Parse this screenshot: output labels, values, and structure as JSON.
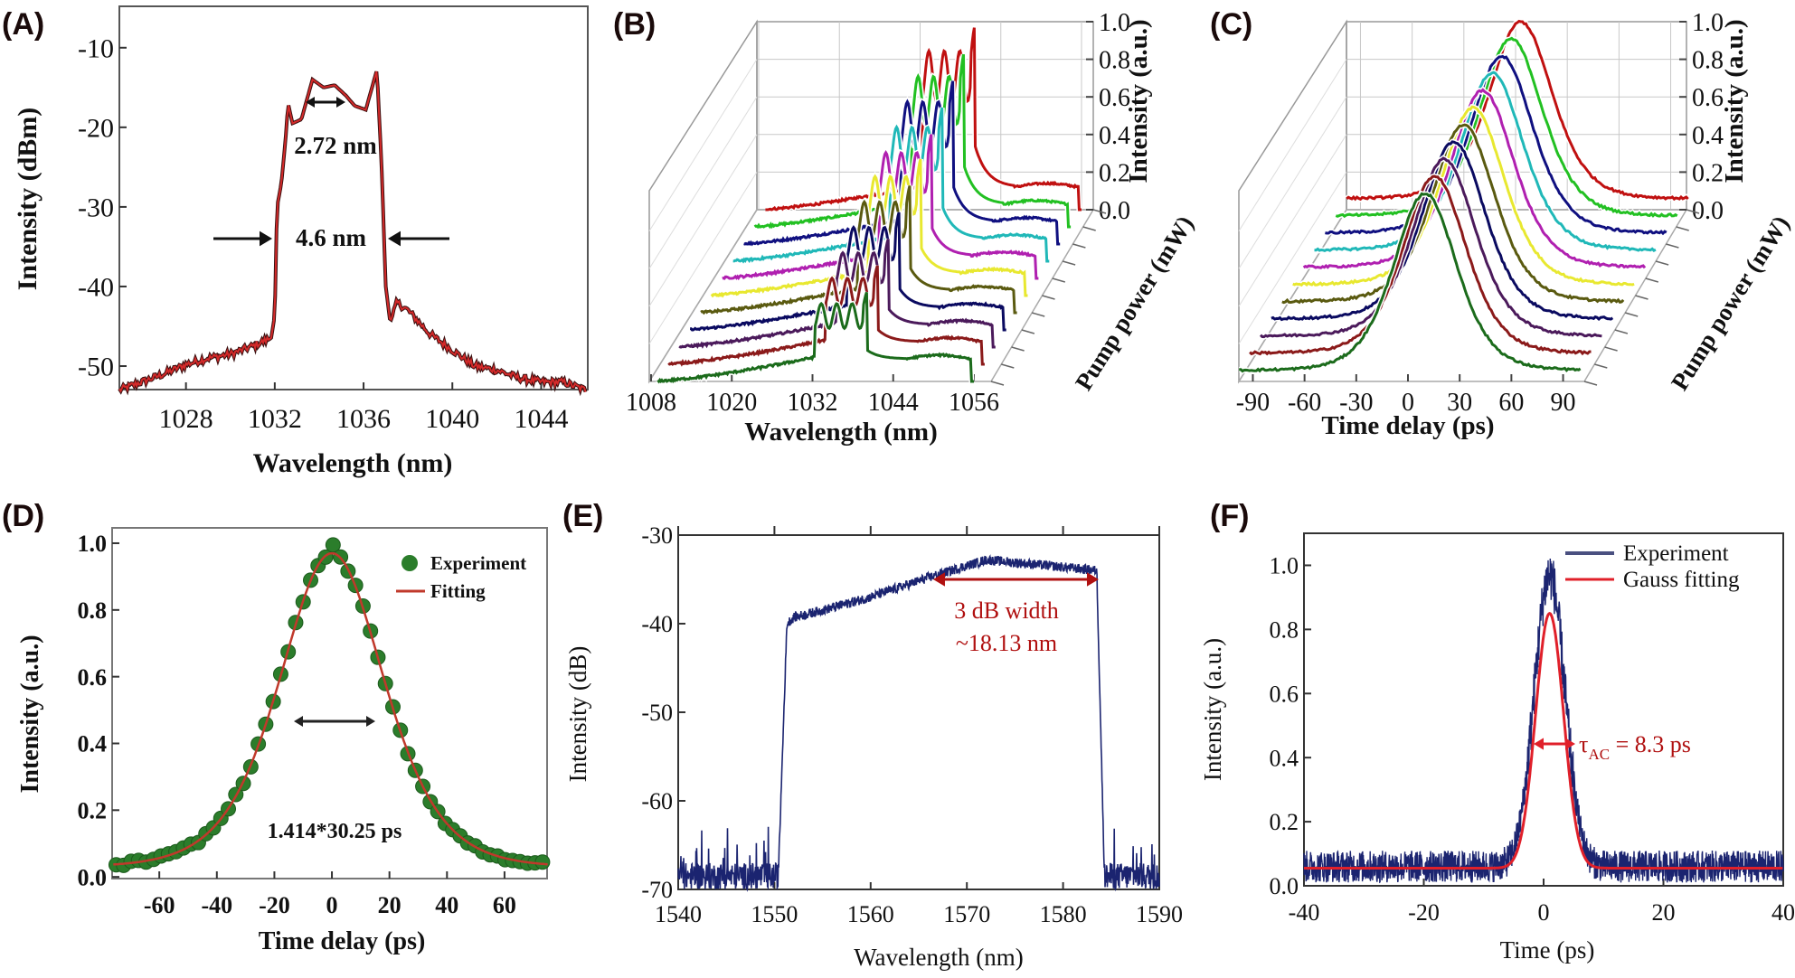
{
  "panels": {
    "A": "(A)",
    "B": "(B)",
    "C": "(C)",
    "D": "(D)",
    "E": "(E)",
    "F": "(F)"
  },
  "colors": {
    "spectrumA": "#d42a2a",
    "expD": "#2b7d2b",
    "fitD": "#c0392b",
    "navy": "#1b2470",
    "fitF": "#e0202a",
    "annot": "#b01010",
    "series3d": [
      "#1b6b1b",
      "#8b1a1a",
      "#4b1a5b",
      "#0a0a60",
      "#5a5a10",
      "#e8e830",
      "#b020b0",
      "#20b8b8",
      "#101080",
      "#22c022",
      "#c01010"
    ]
  },
  "chart_data": [
    {
      "id": "A",
      "type": "line",
      "xlabel": "Wavelength (nm)",
      "ylabel": "Intensity (dBm)",
      "xlim": [
        1025,
        1046.1
      ],
      "ylim": [
        -52.95,
        -4.8
      ],
      "xticks": [
        1028,
        1032,
        1036,
        1040,
        1044
      ],
      "yticks": [
        -10,
        -20,
        -30,
        -40,
        -50
      ],
      "x": [
        1025,
        1026,
        1027,
        1028,
        1029,
        1030,
        1031,
        1031.8,
        1032,
        1032.1,
        1032.3,
        1032.5,
        1032.6,
        1032.8,
        1033.2,
        1033.7,
        1034.2,
        1034.7,
        1035.2,
        1035.6,
        1036.1,
        1036.6,
        1036.8,
        1037,
        1037.2,
        1037.5,
        1038,
        1039,
        1040,
        1041,
        1042,
        1043,
        1044,
        1045,
        1046
      ],
      "y": [
        -53,
        -52,
        -51,
        -49.8,
        -49,
        -48.5,
        -47.5,
        -46.5,
        -44,
        -30,
        -27,
        -21,
        -17,
        -19.5,
        -19,
        -14,
        -15,
        -14.7,
        -16,
        -17.3,
        -17.8,
        -12.8,
        -24,
        -40,
        -44.5,
        -42,
        -43,
        -46,
        -48,
        -50,
        -50.5,
        -51.5,
        -52,
        -52,
        -53
      ],
      "annotations": {
        "inner_width": "2.72 nm",
        "outer_width": "4.6 nm"
      }
    },
    {
      "id": "B",
      "type": "line",
      "xlabel": "Wavelength (nm)",
      "ylabel": "Intensity (a.u.)",
      "zlabel": "Pump power (mW)",
      "xlim": [
        1008,
        1056
      ],
      "ylim": [
        0,
        1.0
      ],
      "xticks": [
        1008,
        1020,
        1032,
        1044,
        1056
      ],
      "yticks": [
        "0.0",
        "0.2",
        "0.4",
        "0.6",
        "0.8",
        "1.0"
      ],
      "series_count": 11,
      "peak_intensity_front_to_back": [
        0.47,
        0.52,
        0.57,
        0.62,
        0.67,
        0.72,
        0.76,
        0.81,
        0.86,
        0.91,
        0.96
      ]
    },
    {
      "id": "C",
      "type": "line",
      "xlabel": "Time delay (ps)",
      "ylabel": "Intensity (a.u.)",
      "zlabel": "Pump power (mW)",
      "xlim": [
        -98,
        100
      ],
      "ylim": [
        0,
        1.0
      ],
      "xticks": [
        -90,
        -60,
        -30,
        0,
        30,
        60,
        90
      ],
      "yticks": [
        "0.0",
        "0.2",
        "0.4",
        "0.6",
        "0.8",
        "1.0"
      ],
      "series_count": 11,
      "pulse_fwhm_ps": 43,
      "pedestal": 0.06
    },
    {
      "id": "D",
      "type": "scatter",
      "xlabel": "Time delay (ps)",
      "ylabel": "Intensity (a.u.)",
      "xlim": [
        -76.4,
        74.8
      ],
      "ylim": [
        -0.005,
        1.046
      ],
      "xticks": [
        -60,
        -40,
        -20,
        0,
        20,
        40,
        60
      ],
      "yticks": [
        "0.0",
        "0.2",
        "0.4",
        "0.6",
        "0.8",
        "1.0"
      ],
      "legend": [
        "Experiment",
        "Fitting"
      ],
      "legend_position": "top-right",
      "fit": {
        "shape": "sech2",
        "peak": 0.97,
        "fwhm_ps": 42.8,
        "baseline": 0.03
      },
      "annotation": "1.414*30.25 ps"
    },
    {
      "id": "E",
      "type": "line",
      "xlabel": "Wavelength (nm)",
      "ylabel": "Intensity (dB)",
      "xlim": [
        1540,
        1590
      ],
      "ylim": [
        -70,
        -30
      ],
      "xticks": [
        "1540",
        "1550",
        "1560",
        "1570",
        "1580",
        "1590"
      ],
      "yticks": [
        -30,
        -40,
        -50,
        -60,
        -70
      ],
      "x": [
        1540,
        1550.4,
        1551.3,
        1552,
        1556,
        1560,
        1566,
        1572,
        1578,
        1583.5,
        1584.3,
        1590
      ],
      "y": [
        -68.5,
        -68.5,
        -40,
        -39.3,
        -38.2,
        -37,
        -34.8,
        -32.8,
        -33.4,
        -34,
        -68.5,
        -68.5
      ],
      "annotation": [
        "3 dB width",
        "~18.13 nm"
      ],
      "arrow_range": [
        1566.5,
        1583.7
      ],
      "arrow_level": -35
    },
    {
      "id": "F",
      "type": "line",
      "xlabel": "Time (ps)",
      "ylabel": "Intensity (a.u.)",
      "xlim": [
        -40,
        40
      ],
      "ylim": [
        0,
        1.1
      ],
      "xticks": [
        -40,
        -20,
        0,
        20,
        40
      ],
      "yticks": [
        "0.0",
        "0.2",
        "0.4",
        "0.6",
        "0.8",
        "1.0"
      ],
      "legend": [
        "Experiment",
        "Gauss fitting"
      ],
      "legend_position": "top-right",
      "experiment": {
        "peak": 0.97,
        "center": 1,
        "fwhm_ps": 6.0,
        "baseline": 0.06,
        "noise": 0.05
      },
      "fit": {
        "peak": 0.85,
        "center": 1,
        "fwhm_ps": 5.5,
        "baseline": 0.055
      },
      "annotation": {
        "symbol": "τ",
        "sub": "AC",
        "text": " = 8.3 ps"
      }
    }
  ]
}
